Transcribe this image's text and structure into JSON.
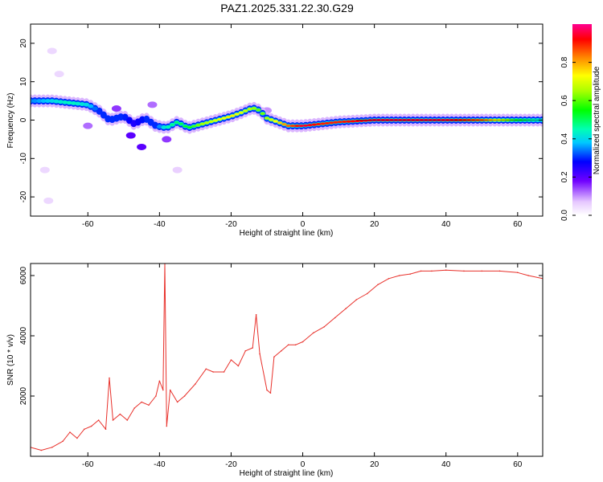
{
  "title": "PAZ1.2025.331.22.30.G29",
  "chart_data": [
    {
      "type": "heatmap",
      "xlabel": "Height of straight line (km)",
      "ylabel": "Frequency (Hz)",
      "xlim": [
        -76,
        67
      ],
      "ylim": [
        -25,
        25
      ],
      "xticks": [
        -60,
        -40,
        -20,
        0,
        20,
        40,
        60
      ],
      "yticks": [
        -20,
        -10,
        0,
        10,
        20
      ],
      "colorbar": {
        "label": "Normalized spectral amplitude",
        "range": [
          0,
          1
        ],
        "ticks": [
          0.0,
          0.2,
          0.4,
          0.6,
          0.8
        ]
      },
      "ridge": {
        "x": [
          -75,
          -70,
          -65,
          -60,
          -57,
          -54,
          -50,
          -47,
          -44,
          -41,
          -38,
          -35,
          -32,
          -28,
          -24,
          -20,
          -17,
          -14,
          -12,
          -10,
          -7,
          -4,
          0,
          5,
          10,
          20,
          30,
          40,
          50,
          60,
          67
        ],
        "y": [
          5,
          5,
          4.5,
          4,
          2.5,
          0,
          1,
          -1,
          0.5,
          -1.5,
          -2,
          -0.5,
          -2,
          -1,
          0,
          1,
          2,
          3.2,
          2.5,
          0.5,
          -0.5,
          -1.5,
          -1.5,
          -1,
          -0.5,
          0,
          0,
          0,
          0,
          0,
          0
        ],
        "amp": [
          0.35,
          0.4,
          0.45,
          0.4,
          0.3,
          0.3,
          0.3,
          0.25,
          0.3,
          0.3,
          0.45,
          0.5,
          0.55,
          0.65,
          0.7,
          0.75,
          0.7,
          0.65,
          0.6,
          0.65,
          0.75,
          0.85,
          0.95,
          0.9,
          0.9,
          0.95,
          0.95,
          0.95,
          0.85,
          0.55,
          0.4
        ]
      },
      "blobs": [
        {
          "x": -70,
          "y": 18,
          "amp": 0.05
        },
        {
          "x": -68,
          "y": 12,
          "amp": 0.05
        },
        {
          "x": -72,
          "y": -13,
          "amp": 0.05
        },
        {
          "x": -71,
          "y": -21,
          "amp": 0.05
        },
        {
          "x": -52,
          "y": 3,
          "amp": 0.15
        },
        {
          "x": -48,
          "y": -4,
          "amp": 0.2
        },
        {
          "x": -45,
          "y": -7,
          "amp": 0.2
        },
        {
          "x": -42,
          "y": 4,
          "amp": 0.12
        },
        {
          "x": -38,
          "y": -5,
          "amp": 0.15
        },
        {
          "x": -35,
          "y": -13,
          "amp": 0.06
        },
        {
          "x": -60,
          "y": -1.5,
          "amp": 0.12
        },
        {
          "x": -10,
          "y": 2.5,
          "amp": 0.1
        }
      ]
    },
    {
      "type": "line",
      "xlabel": "Height of straight line (km)",
      "ylabel": "SNR (10 * v/v)",
      "xlim": [
        -76,
        67
      ],
      "ylim": [
        0,
        6400
      ],
      "xticks": [
        -60,
        -40,
        -20,
        0,
        20,
        40,
        60
      ],
      "yticks": [
        2000,
        4000,
        6000
      ],
      "color": "#e8302a",
      "series": [
        {
          "name": "SNR",
          "x": [
            -76,
            -73,
            -70,
            -67,
            -65,
            -63,
            -61,
            -59,
            -57,
            -55,
            -54,
            -53,
            -51,
            -49,
            -47,
            -45,
            -43,
            -41,
            -40,
            -39,
            -38.5,
            -38,
            -37,
            -35,
            -33,
            -30,
            -27,
            -25,
            -22,
            -20,
            -18,
            -16,
            -14,
            -13,
            -12,
            -10,
            -9,
            -8,
            -6,
            -4,
            -2,
            0,
            3,
            6,
            9,
            12,
            15,
            18,
            21,
            24,
            27,
            30,
            33,
            36,
            40,
            45,
            50,
            55,
            60,
            63,
            67
          ],
          "y": [
            300,
            200,
            300,
            500,
            800,
            600,
            900,
            1000,
            1200,
            900,
            2600,
            1200,
            1400,
            1200,
            1600,
            1800,
            1700,
            2000,
            2500,
            2200,
            6400,
            1000,
            2200,
            1800,
            2000,
            2400,
            2900,
            2800,
            2800,
            3200,
            3000,
            3500,
            3600,
            4700,
            3400,
            2200,
            2100,
            3300,
            3500,
            3700,
            3700,
            3800,
            4100,
            4300,
            4600,
            4900,
            5200,
            5400,
            5700,
            5900,
            6000,
            6050,
            6150,
            6150,
            6180,
            6150,
            6150,
            6150,
            6100,
            6000,
            5900
          ]
        }
      ]
    }
  ]
}
